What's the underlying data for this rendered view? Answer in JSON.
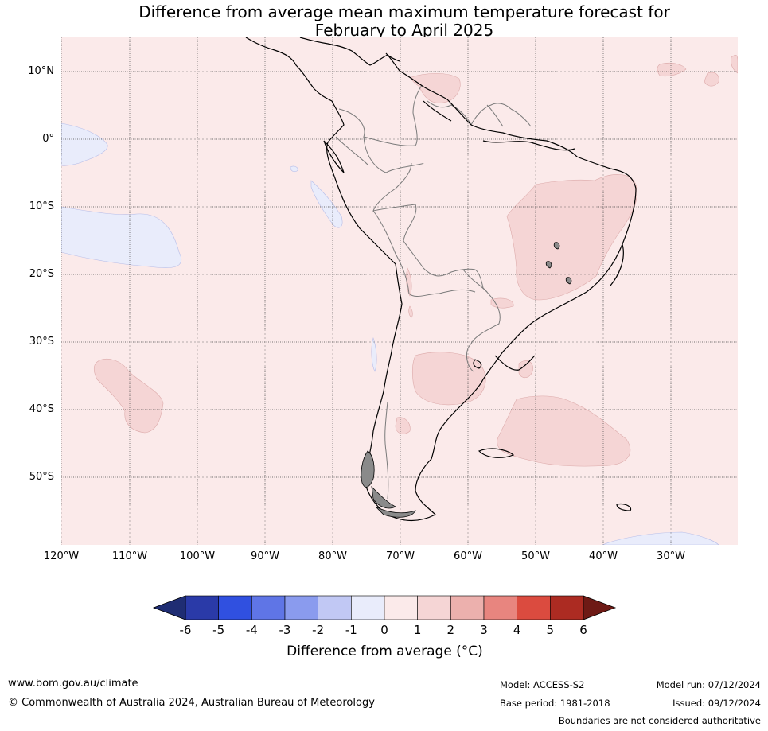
{
  "title": {
    "line1": "Difference from average mean maximum temperature forecast for",
    "line2": "February to April 2025"
  },
  "map": {
    "lat_labels": [
      "10°N",
      "0°",
      "10°S",
      "20°S",
      "30°S",
      "40°S",
      "50°S"
    ],
    "lon_labels": [
      "120°W",
      "110°W",
      "100°W",
      "90°W",
      "80°W",
      "70°W",
      "60°W",
      "50°W",
      "40°W",
      "30°W"
    ],
    "background_color": "#fbeaea"
  },
  "colorbar": {
    "ticks": [
      "-6",
      "-5",
      "-4",
      "-3",
      "-2",
      "-1",
      "0",
      "1",
      "2",
      "3",
      "4",
      "5",
      "6"
    ],
    "colors": [
      "#2a3aa8",
      "#3050e0",
      "#5f75e6",
      "#8a9bee",
      "#c1c8f4",
      "#e9ecfb",
      "#fbeaea",
      "#f5d5d5",
      "#ecb0ad",
      "#e8857f",
      "#db4b3f",
      "#ac2b22"
    ],
    "low_extend_color": "#1f2d73",
    "high_extend_color": "#6e1a15",
    "label": "Difference from average (°C)"
  },
  "footer": {
    "website": "www.bom.gov.au/climate",
    "copyright": "© Commonwealth of Australia 2024, Australian Bureau of Meteorology",
    "model": "Model: ACCESS-S2",
    "base_period": "Base period: 1981-2018",
    "model_run": "Model run: 07/12/2024",
    "issued": "Issued: 09/12/2024",
    "disclaimer": "Boundaries are not considered authoritative"
  }
}
